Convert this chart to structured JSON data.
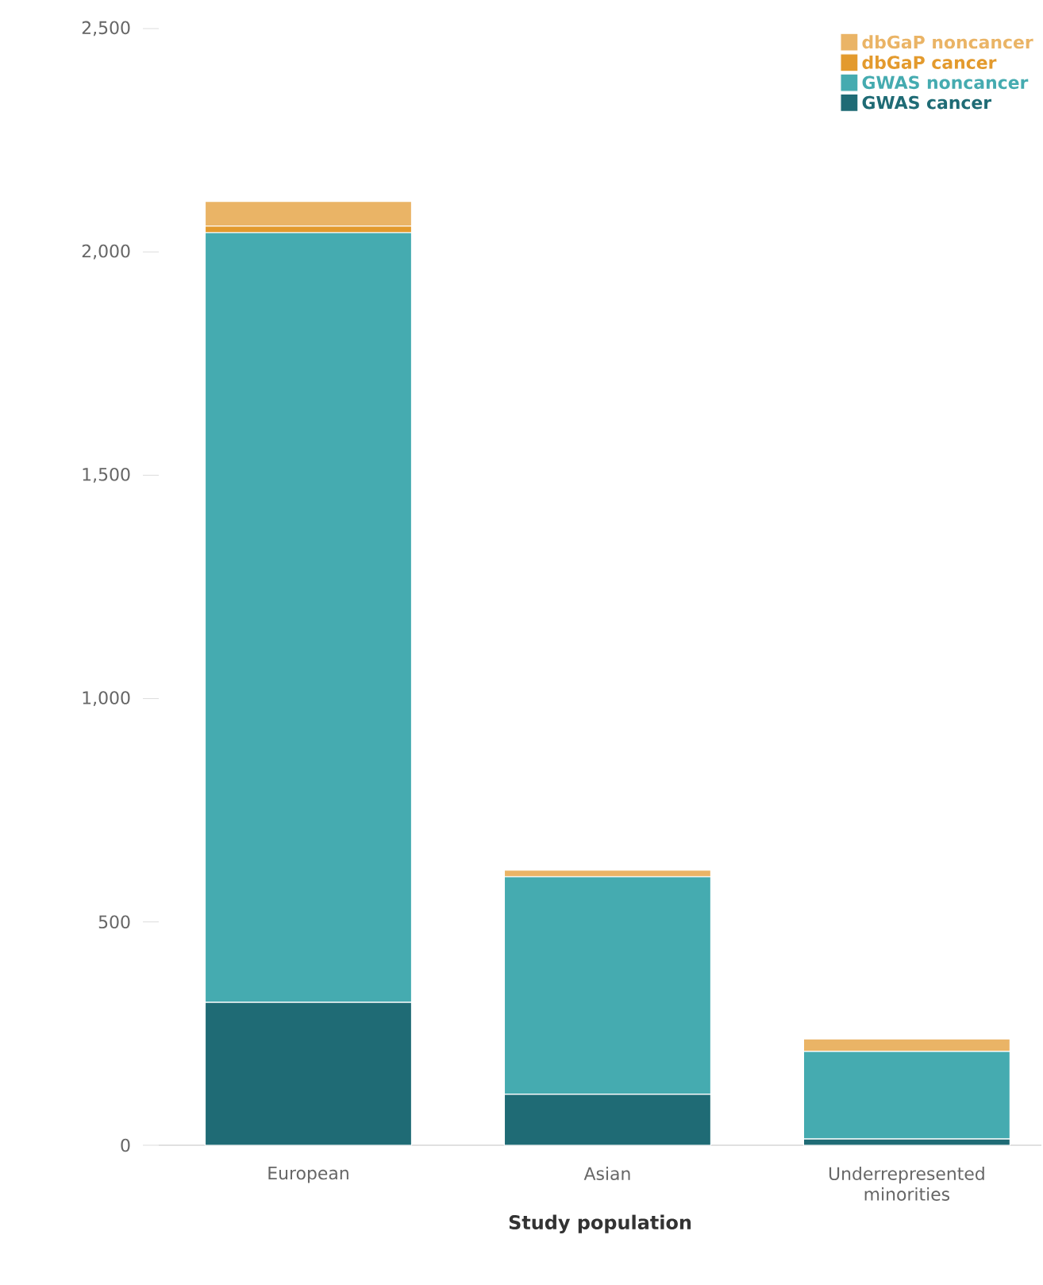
{
  "chart_data": {
    "type": "bar",
    "stacked": true,
    "xlabel": "Study population",
    "categories": [
      "European",
      "Asian",
      "Underrepresented minorities"
    ],
    "series": [
      {
        "name": "GWAS cancer",
        "color": "#1f6b75",
        "values": [
          320,
          114,
          14
        ]
      },
      {
        "name": "GWAS noncancer",
        "color": "#45abb0",
        "values": [
          1723,
          487,
          196
        ]
      },
      {
        "name": "dbGaP cancer",
        "color": "#e39a2d",
        "values": [
          15,
          0,
          0
        ]
      },
      {
        "name": "dbGaP noncancer",
        "color": "#eab466",
        "values": [
          55,
          15,
          28
        ]
      }
    ],
    "ylim": [
      0,
      2500
    ],
    "yticks": [
      0,
      500,
      {
        "value": 1000,
        "label": "1,000"
      },
      {
        "value": 1500,
        "label": "1,500"
      },
      {
        "value": 2000,
        "label": "2,000"
      },
      {
        "value": 2500,
        "label": "2,500"
      }
    ],
    "grid": false,
    "legend": "top right"
  }
}
